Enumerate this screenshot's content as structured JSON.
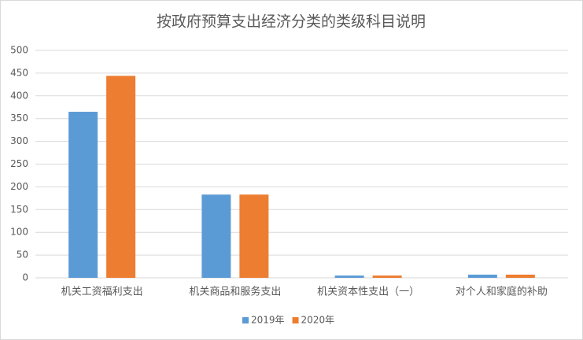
{
  "chart_data": {
    "type": "bar",
    "title": "按政府预算支出经济分类的类级科目说明",
    "categories": [
      "机关工资福利支出",
      "机关商品和服务支出",
      "机关资本性支出（一）",
      "对个人和家庭的补助"
    ],
    "series": [
      {
        "name": "2019年",
        "color": "#5b9bd5",
        "values": [
          365,
          183,
          5,
          7
        ]
      },
      {
        "name": "2020年",
        "color": "#ed7d31",
        "values": [
          444,
          183,
          5,
          7
        ]
      }
    ],
    "ylim": [
      0,
      500
    ],
    "yticks": [
      0,
      50,
      100,
      150,
      200,
      250,
      300,
      350,
      400,
      450,
      500
    ],
    "grid": true
  }
}
